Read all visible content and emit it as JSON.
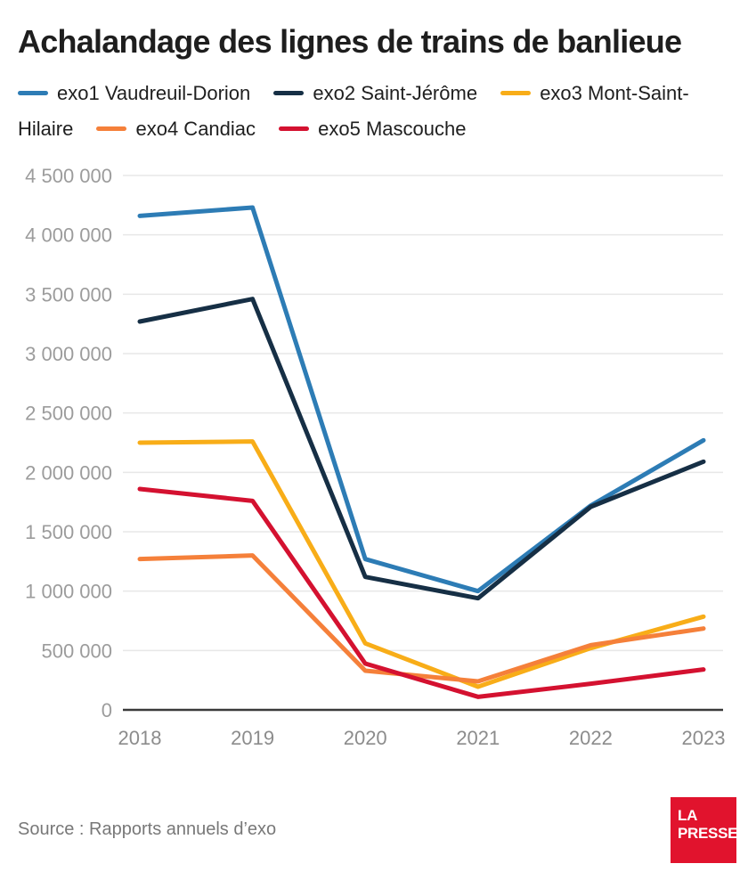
{
  "title": "Achalandage des lignes de trains de banlieue",
  "source": "Source : Rapports annuels d’exo",
  "logo": {
    "line1": "LA",
    "line2": "PRESSE",
    "background": "#e1132d",
    "text_color": "#ffffff"
  },
  "colors": {
    "gridline": "#e7e7e7",
    "axis_line": "#3a3a3a",
    "y_tick_label": "#9c9c9c",
    "x_tick_label": "#8c8c8c",
    "title_text": "#1e1e1e",
    "legend_text": "#1f1f1f",
    "source_text": "#787878"
  },
  "chart_data": {
    "type": "line",
    "title": "Achalandage des lignes de trains de banlieue",
    "xlabel": "",
    "ylabel": "",
    "x": [
      2018,
      2019,
      2020,
      2021,
      2022,
      2023
    ],
    "series": [
      {
        "name": "exo1 Vaudreuil-Dorion",
        "color": "#2d7cb5",
        "values": [
          4160000,
          4230000,
          1270000,
          1000000,
          1720000,
          2270000
        ]
      },
      {
        "name": "exo2 Saint-Jérôme",
        "color": "#162f45",
        "values": [
          3270000,
          3460000,
          1120000,
          940000,
          1710000,
          2090000
        ]
      },
      {
        "name": "exo3 Mont-Saint-Hilaire",
        "color": "#f8ad18",
        "values": [
          2250000,
          2260000,
          560000,
          195000,
          520000,
          785000
        ]
      },
      {
        "name": "exo4 Candiac",
        "color": "#f5803a",
        "values": [
          1270000,
          1300000,
          330000,
          240000,
          545000,
          685000
        ]
      },
      {
        "name": "exo5 Mascouche",
        "color": "#d41130",
        "values": [
          1860000,
          1760000,
          390000,
          110000,
          220000,
          340000
        ]
      }
    ],
    "ylim": [
      0,
      4500000
    ],
    "ytick_interval": 500000,
    "ytick_labels": [
      "0",
      "500 000",
      "1 000 000",
      "1 500 000",
      "2 000 000",
      "2 500 000",
      "3 000 000",
      "3 500 000",
      "4 000 000",
      "4 500 000"
    ],
    "grid": true,
    "legend_position": "top"
  }
}
